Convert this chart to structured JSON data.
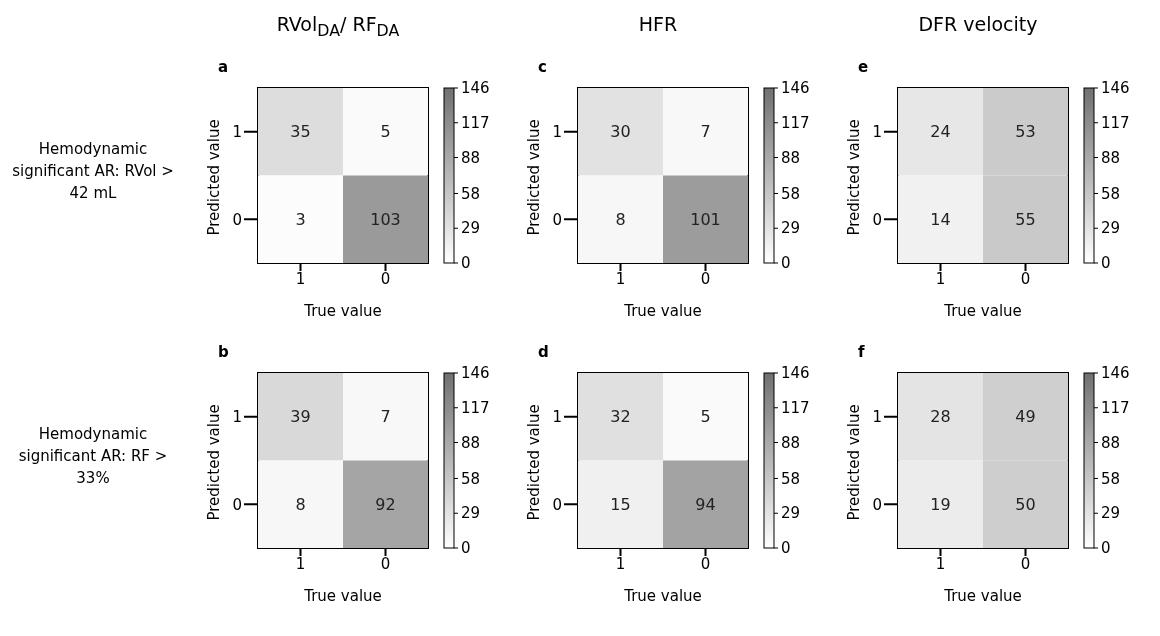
{
  "chart_data": [
    {
      "type": "heatmap",
      "title": "a",
      "annotations": [
        "RVol$_{DA}$/ RF$_{DA}$",
        "Hemodynamic significant AR: RVol > 42 mL"
      ],
      "xlabel": "True value",
      "ylabel": "Predicted value",
      "categories": [
        "1",
        "0"
      ],
      "y_categories": [
        "1",
        "0"
      ],
      "cells": [
        [
          35,
          5
        ],
        [
          3,
          103
        ]
      ],
      "data_labels": true,
      "clim": [
        0,
        146
      ],
      "cticks": [
        0,
        29,
        58,
        88,
        117,
        146
      ]
    },
    {
      "type": "heatmap",
      "title": "c",
      "annotations": [
        "HFR"
      ],
      "xlabel": "True value",
      "ylabel": "Predicted value",
      "categories": [
        "1",
        "0"
      ],
      "y_categories": [
        "1",
        "0"
      ],
      "cells": [
        [
          30,
          7
        ],
        [
          8,
          101
        ]
      ],
      "data_labels": true,
      "clim": [
        0,
        146
      ],
      "cticks": [
        0,
        29,
        58,
        88,
        117,
        146
      ]
    },
    {
      "type": "heatmap",
      "title": "e",
      "annotations": [
        "DFR velocity"
      ],
      "xlabel": "True value",
      "ylabel": "Predicted value",
      "categories": [
        "1",
        "0"
      ],
      "y_categories": [
        "1",
        "0"
      ],
      "cells": [
        [
          24,
          53
        ],
        [
          14,
          55
        ]
      ],
      "data_labels": true,
      "clim": [
        0,
        146
      ],
      "cticks": [
        0,
        29,
        58,
        88,
        117,
        146
      ]
    },
    {
      "type": "heatmap",
      "title": "b",
      "annotations": [
        "Hemodynamic significant AR: RF > 33%"
      ],
      "xlabel": "True value",
      "ylabel": "Predicted value",
      "categories": [
        "1",
        "0"
      ],
      "y_categories": [
        "1",
        "0"
      ],
      "cells": [
        [
          39,
          7
        ],
        [
          8,
          92
        ]
      ],
      "data_labels": true,
      "clim": [
        0,
        146
      ],
      "cticks": [
        0,
        29,
        58,
        88,
        117,
        146
      ]
    },
    {
      "type": "heatmap",
      "title": "d",
      "xlabel": "True value",
      "ylabel": "Predicted value",
      "categories": [
        "1",
        "0"
      ],
      "y_categories": [
        "1",
        "0"
      ],
      "cells": [
        [
          32,
          5
        ],
        [
          15,
          94
        ]
      ],
      "data_labels": true,
      "clim": [
        0,
        146
      ],
      "cticks": [
        0,
        29,
        58,
        88,
        117,
        146
      ]
    },
    {
      "type": "heatmap",
      "title": "f",
      "xlabel": "True value",
      "ylabel": "Predicted value",
      "categories": [
        "1",
        "0"
      ],
      "y_categories": [
        "1",
        "0"
      ],
      "cells": [
        [
          28,
          49
        ],
        [
          19,
          50
        ]
      ],
      "data_labels": true,
      "clim": [
        0,
        146
      ],
      "cticks": [
        0,
        29,
        58,
        88,
        117,
        146
      ]
    }
  ]
}
